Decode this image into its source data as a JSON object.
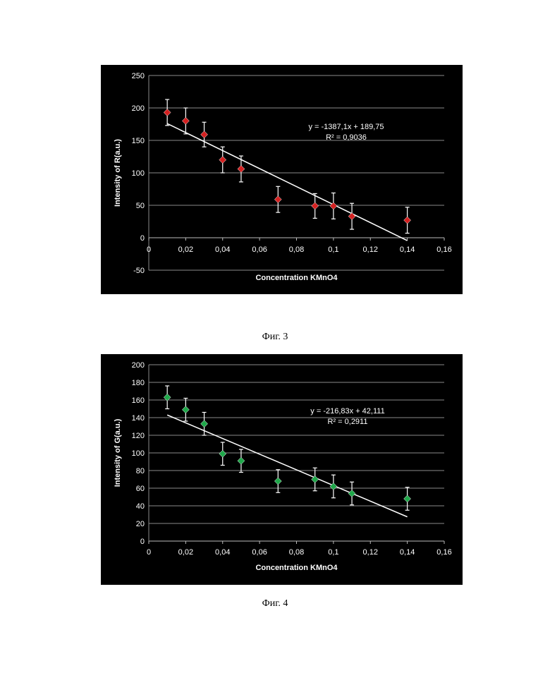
{
  "chart_data": [
    {
      "type": "scatter",
      "caption": "Фиг. 3",
      "xlabel": "Concentration KMnO4",
      "ylabel": "Intensity of R(a.u.)",
      "xlim": [
        0,
        0.16
      ],
      "ylim": [
        -50,
        250
      ],
      "x_ticks": [
        "0",
        "0,02",
        "0,04",
        "0,06",
        "0,08",
        "0,1",
        "0,12",
        "0,14",
        "0,16"
      ],
      "y_ticks": [
        "-50",
        "0",
        "50",
        "100",
        "150",
        "200",
        "250"
      ],
      "marker_color": "#d42020",
      "grid": true,
      "points": [
        {
          "x": 0.01,
          "y": 193,
          "err": 20
        },
        {
          "x": 0.02,
          "y": 180,
          "err": 20
        },
        {
          "x": 0.03,
          "y": 159,
          "err": 19
        },
        {
          "x": 0.04,
          "y": 120,
          "err": 20
        },
        {
          "x": 0.05,
          "y": 106,
          "err": 20
        },
        {
          "x": 0.07,
          "y": 59,
          "err": 20
        },
        {
          "x": 0.09,
          "y": 49,
          "err": 19
        },
        {
          "x": 0.1,
          "y": 49,
          "err": 20
        },
        {
          "x": 0.11,
          "y": 33,
          "err": 20
        },
        {
          "x": 0.14,
          "y": 27,
          "err": 20
        }
      ],
      "trendline": {
        "x": [
          0.01,
          0.14
        ],
        "y": [
          175.9,
          -4.4
        ]
      },
      "equation": "y = -1387,1x + 189,75",
      "r2": "R² = 0,9036"
    },
    {
      "type": "scatter",
      "caption": "Фиг. 4",
      "xlabel": "Concentration KMnO4",
      "ylabel": "Intensity of G(a.u.)",
      "xlim": [
        0,
        0.16
      ],
      "ylim": [
        0,
        200
      ],
      "x_ticks": [
        "0",
        "0,02",
        "0,04",
        "0,06",
        "0,08",
        "0,1",
        "0,12",
        "0,14",
        "0,16"
      ],
      "y_ticks": [
        "0",
        "20",
        "40",
        "60",
        "80",
        "100",
        "120",
        "140",
        "160",
        "180",
        "200"
      ],
      "marker_color": "#1fa84a",
      "grid": true,
      "points": [
        {
          "x": 0.01,
          "y": 163,
          "err": 13
        },
        {
          "x": 0.02,
          "y": 149,
          "err": 13
        },
        {
          "x": 0.03,
          "y": 133,
          "err": 13
        },
        {
          "x": 0.04,
          "y": 99,
          "err": 13
        },
        {
          "x": 0.05,
          "y": 91,
          "err": 13
        },
        {
          "x": 0.07,
          "y": 68,
          "err": 13
        },
        {
          "x": 0.09,
          "y": 70,
          "err": 13
        },
        {
          "x": 0.1,
          "y": 62,
          "err": 13
        },
        {
          "x": 0.11,
          "y": 54,
          "err": 13
        },
        {
          "x": 0.14,
          "y": 48,
          "err": 13
        }
      ],
      "trendline": {
        "x": [
          0.01,
          0.14
        ],
        "y": [
          143,
          27.5
        ]
      },
      "equation": "y = -216,83x + 42,111",
      "r2": "R² = 0,2911"
    }
  ]
}
